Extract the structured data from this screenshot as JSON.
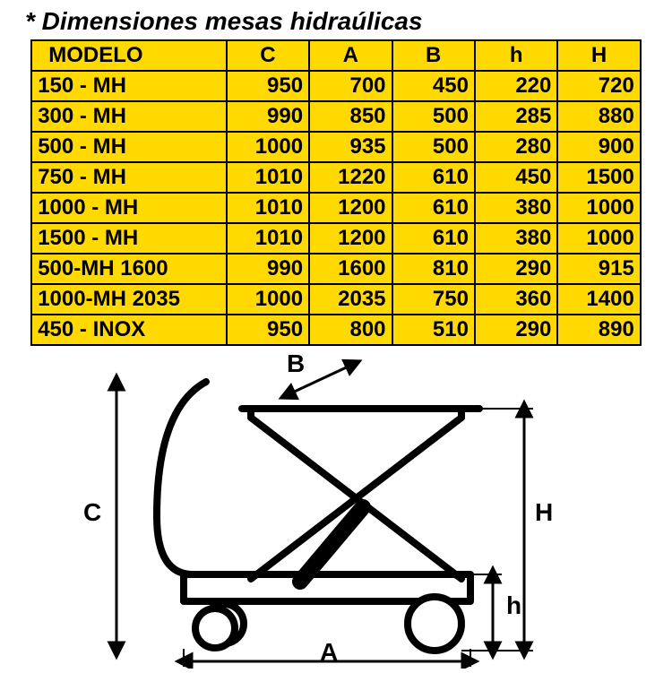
{
  "title": "* Dimensiones mesas hidraúlicas",
  "table": {
    "columns": [
      "MODELO",
      "C",
      "A",
      "B",
      "h",
      "H"
    ],
    "rows": [
      [
        "150 - MH",
        "950",
        "700",
        "450",
        "220",
        "720"
      ],
      [
        "300 - MH",
        "990",
        "850",
        "500",
        "285",
        "880"
      ],
      [
        "500 - MH",
        "1000",
        "935",
        "500",
        "280",
        "900"
      ],
      [
        "750 - MH",
        "1010",
        "1220",
        "610",
        "450",
        "1500"
      ],
      [
        "1000 - MH",
        "1010",
        "1200",
        "610",
        "380",
        "1000"
      ],
      [
        "1500 - MH",
        "1010",
        "1200",
        "610",
        "380",
        "1000"
      ],
      [
        "500-MH 1600",
        "990",
        "1600",
        "810",
        "290",
        "915"
      ],
      [
        "1000-MH 2035",
        "1000",
        "2035",
        "750",
        "360",
        "1400"
      ],
      [
        "450 - INOX",
        "950",
        "800",
        "510",
        "290",
        "890"
      ]
    ],
    "font_size": 24,
    "header_bg": "#ffd900",
    "cell_bg": "#ffd900",
    "border_color": "#000000",
    "border_width": 2
  },
  "diagram": {
    "labels": {
      "C": "C",
      "A": "A",
      "B": "B",
      "h": "h",
      "H": "H"
    },
    "label_fontsize": 28,
    "stroke_color": "#000000",
    "line_width_main": 8,
    "line_width_dim": 3,
    "arrow_size": 10
  },
  "colors": {
    "accent": "#ffd900",
    "text": "#000000",
    "background": "#ffffff"
  }
}
